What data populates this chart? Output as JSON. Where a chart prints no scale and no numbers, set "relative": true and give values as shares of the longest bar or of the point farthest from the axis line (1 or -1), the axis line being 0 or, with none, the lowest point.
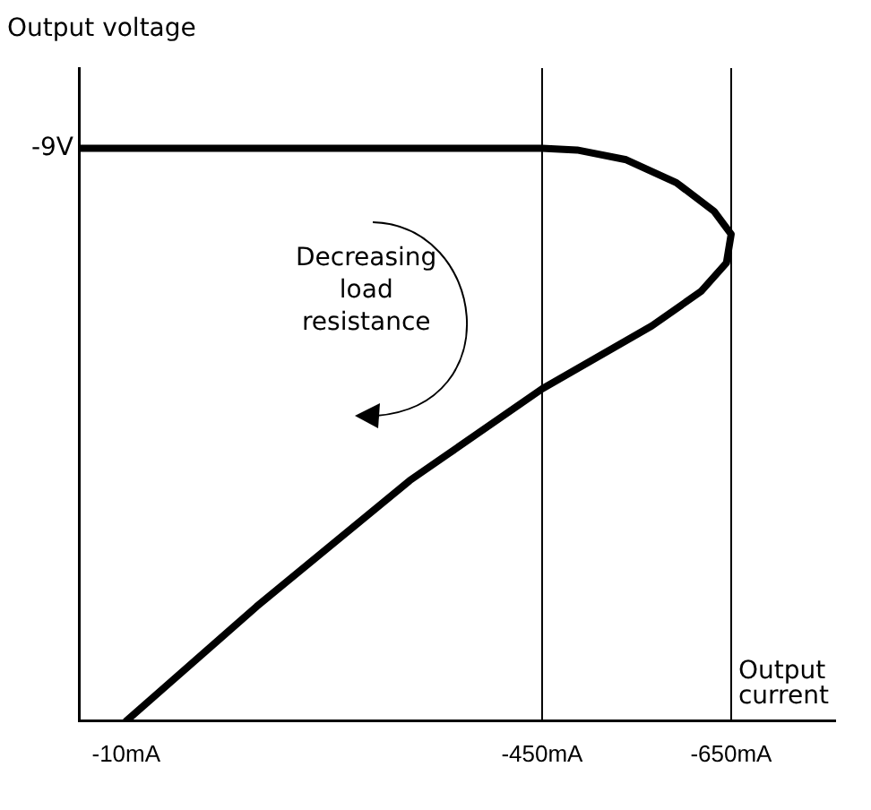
{
  "chart_data": {
    "type": "line",
    "xlabel": "Output current",
    "ylabel": "Output voltage",
    "relative": true,
    "annotations": [
      "Decreasing load resistance",
      "-9V"
    ],
    "x": [
      40,
      -450,
      -487,
      -539,
      -592,
      -632,
      -650,
      -645,
      -618,
      -566,
      -450,
      -310,
      -148,
      -10
    ],
    "series": [
      {
        "color": "#000000",
        "values": [
          1,
          1,
          0.997,
          0.98,
          0.94,
          0.89,
          0.85,
          0.8,
          0.75,
          0.69,
          0.58,
          0.42,
          0.2,
          0
        ]
      }
    ],
    "xlim": [
      40,
      -760
    ],
    "xticks": [
      {
        "value": -10,
        "label": "-10mA"
      },
      {
        "value": -450,
        "label": "-450mA"
      },
      {
        "value": -650,
        "label": "-650mA"
      }
    ],
    "ref_lines": [
      {
        "axis": "x",
        "value": -450
      },
      {
        "axis": "x",
        "value": -650
      }
    ],
    "grid": false,
    "legend": false,
    "marker": "none",
    "line_style": "solid"
  }
}
